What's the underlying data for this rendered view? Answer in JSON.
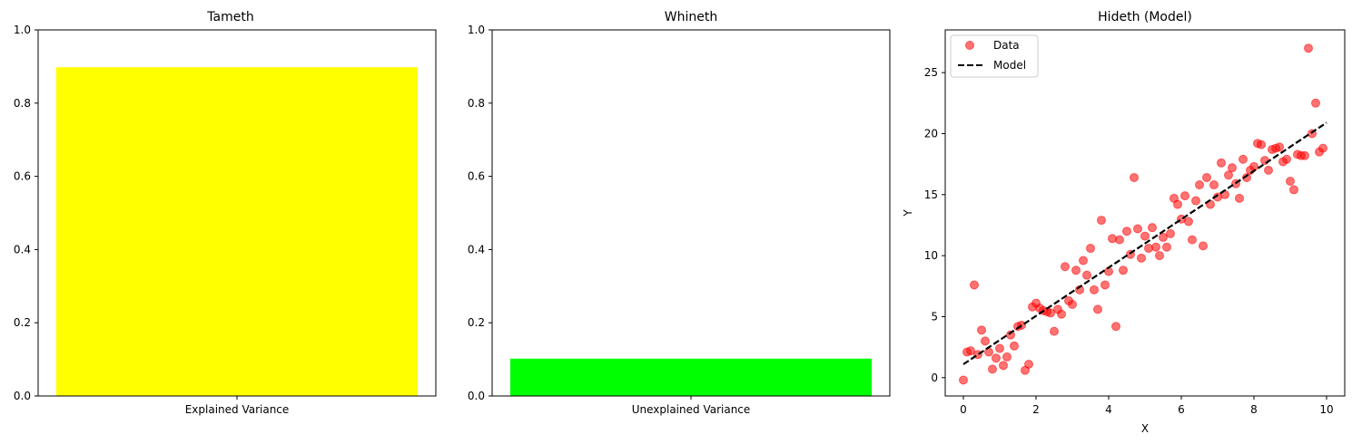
{
  "chart_data": [
    {
      "type": "bar",
      "title": "Tameth",
      "categories": [
        "Explained Variance"
      ],
      "values": [
        0.898
      ],
      "ylim": [
        0,
        1
      ],
      "yticks": [
        "0.0",
        "0.2",
        "0.4",
        "0.6",
        "0.8",
        "1.0"
      ],
      "color": "#ffff00",
      "xlabel": "",
      "ylabel": ""
    },
    {
      "type": "bar",
      "title": "Whineth",
      "categories": [
        "Unexplained Variance"
      ],
      "values": [
        0.102
      ],
      "ylim": [
        0,
        1
      ],
      "yticks": [
        "0.0",
        "0.2",
        "0.4",
        "0.6",
        "0.8",
        "1.0"
      ],
      "color": "#00ff00",
      "xlabel": "",
      "ylabel": ""
    },
    {
      "type": "scatter",
      "title": "Hideth (Model)",
      "xlabel": "X",
      "ylabel": "Y",
      "xlim": [
        -0.5,
        10.5
      ],
      "ylim": [
        -1.5,
        28.5
      ],
      "xticks": [
        "0",
        "2",
        "4",
        "6",
        "8",
        "10"
      ],
      "yticks": [
        "0",
        "5",
        "10",
        "15",
        "20",
        "25"
      ],
      "legend": {
        "position": "top-left",
        "entries": [
          "Data",
          "Model"
        ]
      },
      "series": [
        {
          "name": "Data",
          "color": "#ff0000",
          "points": [
            [
              0.0,
              -0.2
            ],
            [
              0.1,
              2.1
            ],
            [
              0.2,
              2.2
            ],
            [
              0.3,
              7.6
            ],
            [
              0.4,
              1.9
            ],
            [
              0.5,
              3.9
            ],
            [
              0.6,
              3.0
            ],
            [
              0.7,
              2.1
            ],
            [
              0.8,
              0.7
            ],
            [
              0.9,
              1.6
            ],
            [
              1.0,
              2.4
            ],
            [
              1.1,
              1.0
            ],
            [
              1.2,
              1.7
            ],
            [
              1.3,
              3.5
            ],
            [
              1.4,
              2.6
            ],
            [
              1.5,
              4.2
            ],
            [
              1.6,
              4.3
            ],
            [
              1.7,
              0.6
            ],
            [
              1.8,
              1.1
            ],
            [
              1.9,
              5.8
            ],
            [
              2.0,
              6.1
            ],
            [
              2.1,
              5.7
            ],
            [
              2.2,
              5.5
            ],
            [
              2.3,
              5.4
            ],
            [
              2.4,
              5.3
            ],
            [
              2.5,
              3.8
            ],
            [
              2.6,
              5.6
            ],
            [
              2.7,
              5.2
            ],
            [
              2.8,
              9.1
            ],
            [
              2.9,
              6.3
            ],
            [
              3.0,
              6.0
            ],
            [
              3.1,
              8.8
            ],
            [
              3.2,
              7.2
            ],
            [
              3.3,
              9.6
            ],
            [
              3.4,
              8.4
            ],
            [
              3.5,
              10.6
            ],
            [
              3.6,
              7.2
            ],
            [
              3.7,
              5.6
            ],
            [
              3.8,
              12.9
            ],
            [
              3.9,
              7.6
            ],
            [
              4.0,
              8.7
            ],
            [
              4.1,
              11.4
            ],
            [
              4.2,
              4.2
            ],
            [
              4.3,
              11.3
            ],
            [
              4.4,
              8.8
            ],
            [
              4.5,
              12.0
            ],
            [
              4.6,
              10.1
            ],
            [
              4.7,
              16.4
            ],
            [
              4.8,
              12.2
            ],
            [
              4.9,
              9.8
            ],
            [
              5.0,
              11.6
            ],
            [
              5.1,
              10.6
            ],
            [
              5.2,
              12.3
            ],
            [
              5.3,
              10.7
            ],
            [
              5.4,
              10.0
            ],
            [
              5.5,
              11.5
            ],
            [
              5.6,
              10.7
            ],
            [
              5.7,
              11.8
            ],
            [
              5.8,
              14.7
            ],
            [
              5.9,
              14.2
            ],
            [
              6.0,
              13.0
            ],
            [
              6.1,
              14.9
            ],
            [
              6.2,
              12.8
            ],
            [
              6.3,
              11.3
            ],
            [
              6.4,
              14.5
            ],
            [
              6.5,
              15.8
            ],
            [
              6.6,
              10.8
            ],
            [
              6.7,
              16.4
            ],
            [
              6.8,
              14.2
            ],
            [
              6.9,
              15.8
            ],
            [
              7.0,
              14.8
            ],
            [
              7.1,
              17.6
            ],
            [
              7.2,
              15.0
            ],
            [
              7.3,
              16.6
            ],
            [
              7.4,
              17.2
            ],
            [
              7.5,
              15.9
            ],
            [
              7.6,
              14.7
            ],
            [
              7.7,
              17.9
            ],
            [
              7.8,
              16.4
            ],
            [
              7.9,
              17.0
            ],
            [
              8.0,
              17.3
            ],
            [
              8.1,
              19.2
            ],
            [
              8.2,
              19.1
            ],
            [
              8.3,
              17.8
            ],
            [
              8.4,
              17.0
            ],
            [
              8.5,
              18.7
            ],
            [
              8.6,
              18.8
            ],
            [
              8.7,
              18.9
            ],
            [
              8.8,
              17.7
            ],
            [
              8.9,
              17.9
            ],
            [
              9.0,
              16.1
            ],
            [
              9.1,
              15.4
            ],
            [
              9.2,
              18.3
            ],
            [
              9.3,
              18.2
            ],
            [
              9.4,
              18.2
            ],
            [
              9.5,
              27.0
            ],
            [
              9.6,
              20.0
            ],
            [
              9.7,
              22.5
            ],
            [
              9.8,
              18.5
            ],
            [
              9.9,
              18.8
            ]
          ]
        },
        {
          "name": "Model",
          "type": "line",
          "style": "dashed",
          "color": "#000000",
          "points": [
            [
              0,
              1.1
            ],
            [
              10,
              20.9
            ]
          ]
        }
      ]
    }
  ]
}
